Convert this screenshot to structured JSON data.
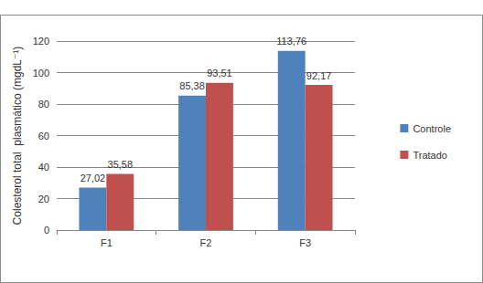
{
  "chart_data": {
    "type": "bar",
    "y_label": "Colesterol total  plasmático (mgdL⁻¹)",
    "categories": [
      "F1",
      "F2",
      "F3"
    ],
    "series": [
      {
        "name": "Controle",
        "color": "#4f81bd",
        "values": [
          27.02,
          85.38,
          113.76
        ],
        "value_labels": [
          "27,02",
          "85,38",
          "113,76"
        ]
      },
      {
        "name": "Tratado",
        "color": "#c0504d",
        "values": [
          35.58,
          93.51,
          92.17
        ],
        "value_labels": [
          "35,58",
          "93,51",
          "92,17"
        ]
      }
    ],
    "ylim": [
      0,
      120
    ],
    "yticks": [
      0,
      20,
      40,
      60,
      80,
      100,
      120
    ],
    "grid": true,
    "legend": "right",
    "data_labels": true
  }
}
